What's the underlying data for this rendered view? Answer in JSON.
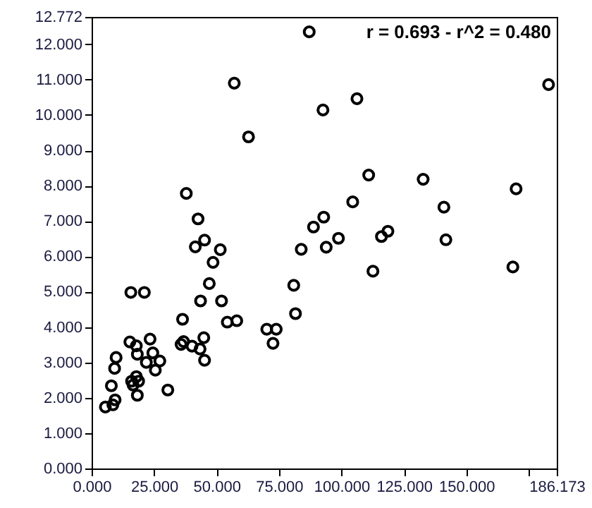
{
  "chart_data": {
    "type": "scatter",
    "x": [
      87.1,
      57.1,
      62.8,
      37.9,
      42.6,
      45.2,
      41.5,
      51.5,
      182.9,
      106.2,
      92.6,
      110.9,
      132.7,
      169.9,
      104.5,
      141.0,
      92.9,
      88.8,
      118.6,
      116.0,
      98.8,
      93.9,
      141.8,
      83.9,
      112.6,
      168.6,
      80.9,
      81.6,
      48.6,
      15.7,
      21.1,
      47.1,
      43.6,
      52.0,
      36.4,
      54.3,
      58.1,
      70.1,
      73.9,
      72.6,
      15.3,
      17.9,
      23.4,
      24.5,
      18.3,
      9.8,
      21.9,
      27.3,
      25.5,
      9.2,
      35.8,
      36.8,
      40.2,
      43.4,
      44.9,
      45.2,
      7.9,
      17.9,
      16.0,
      18.8,
      16.6,
      18.3,
      30.5,
      9.4,
      8.5,
      5.5
    ],
    "series": [
      {
        "color": "#000000",
        "values": [
          12.35,
          10.9,
          9.38,
          7.78,
          7.06,
          6.46,
          6.27,
          6.19,
          10.86,
          10.46,
          10.14,
          8.3,
          8.18,
          7.91,
          7.54,
          7.39,
          7.11,
          6.83,
          6.71,
          6.56,
          6.51,
          6.26,
          6.47,
          6.2,
          5.58,
          5.7,
          5.18,
          4.38,
          5.83,
          4.98,
          4.98,
          5.23,
          4.74,
          4.74,
          4.22,
          4.14,
          4.18,
          3.94,
          3.94,
          3.54,
          3.58,
          3.47,
          3.66,
          3.27,
          3.23,
          3.14,
          3.0,
          3.04,
          2.78,
          2.83,
          3.51,
          3.59,
          3.46,
          3.38,
          3.7,
          3.06,
          2.34,
          2.6,
          2.47,
          2.47,
          2.36,
          2.07,
          2.22,
          1.94,
          1.8,
          1.74
        ]
      }
    ],
    "xlim": [
      0,
      186.173
    ],
    "ylim": [
      0,
      12.772
    ],
    "xticks": [
      {
        "value": 0,
        "label": "0.000"
      },
      {
        "value": 25,
        "label": "25.000"
      },
      {
        "value": 50,
        "label": "50.000"
      },
      {
        "value": 75,
        "label": "75.000"
      },
      {
        "value": 100,
        "label": "100.000"
      },
      {
        "value": 125,
        "label": "125.000"
      },
      {
        "value": 150,
        "label": "150.000"
      },
      {
        "value": 175,
        "label": null
      },
      {
        "value": 186.173,
        "label": "186.173"
      }
    ],
    "yticks": [
      {
        "value": 0,
        "label": "0.000"
      },
      {
        "value": 1,
        "label": "1.000"
      },
      {
        "value": 2,
        "label": "2.000"
      },
      {
        "value": 3,
        "label": "3.000"
      },
      {
        "value": 4,
        "label": "4.000"
      },
      {
        "value": 5,
        "label": "5.000"
      },
      {
        "value": 6,
        "label": "6.000"
      },
      {
        "value": 7,
        "label": "7.000"
      },
      {
        "value": 8,
        "label": "8.000"
      },
      {
        "value": 9,
        "label": "9.000"
      },
      {
        "value": 10,
        "label": "10.000"
      },
      {
        "value": 11,
        "label": "11.000"
      },
      {
        "value": 12,
        "label": "12.000"
      },
      {
        "value": 12.772,
        "label": "12.772"
      }
    ],
    "marker": "circle",
    "annotations": [
      "r = 0.693 - r^2 = 0.480"
    ]
  }
}
